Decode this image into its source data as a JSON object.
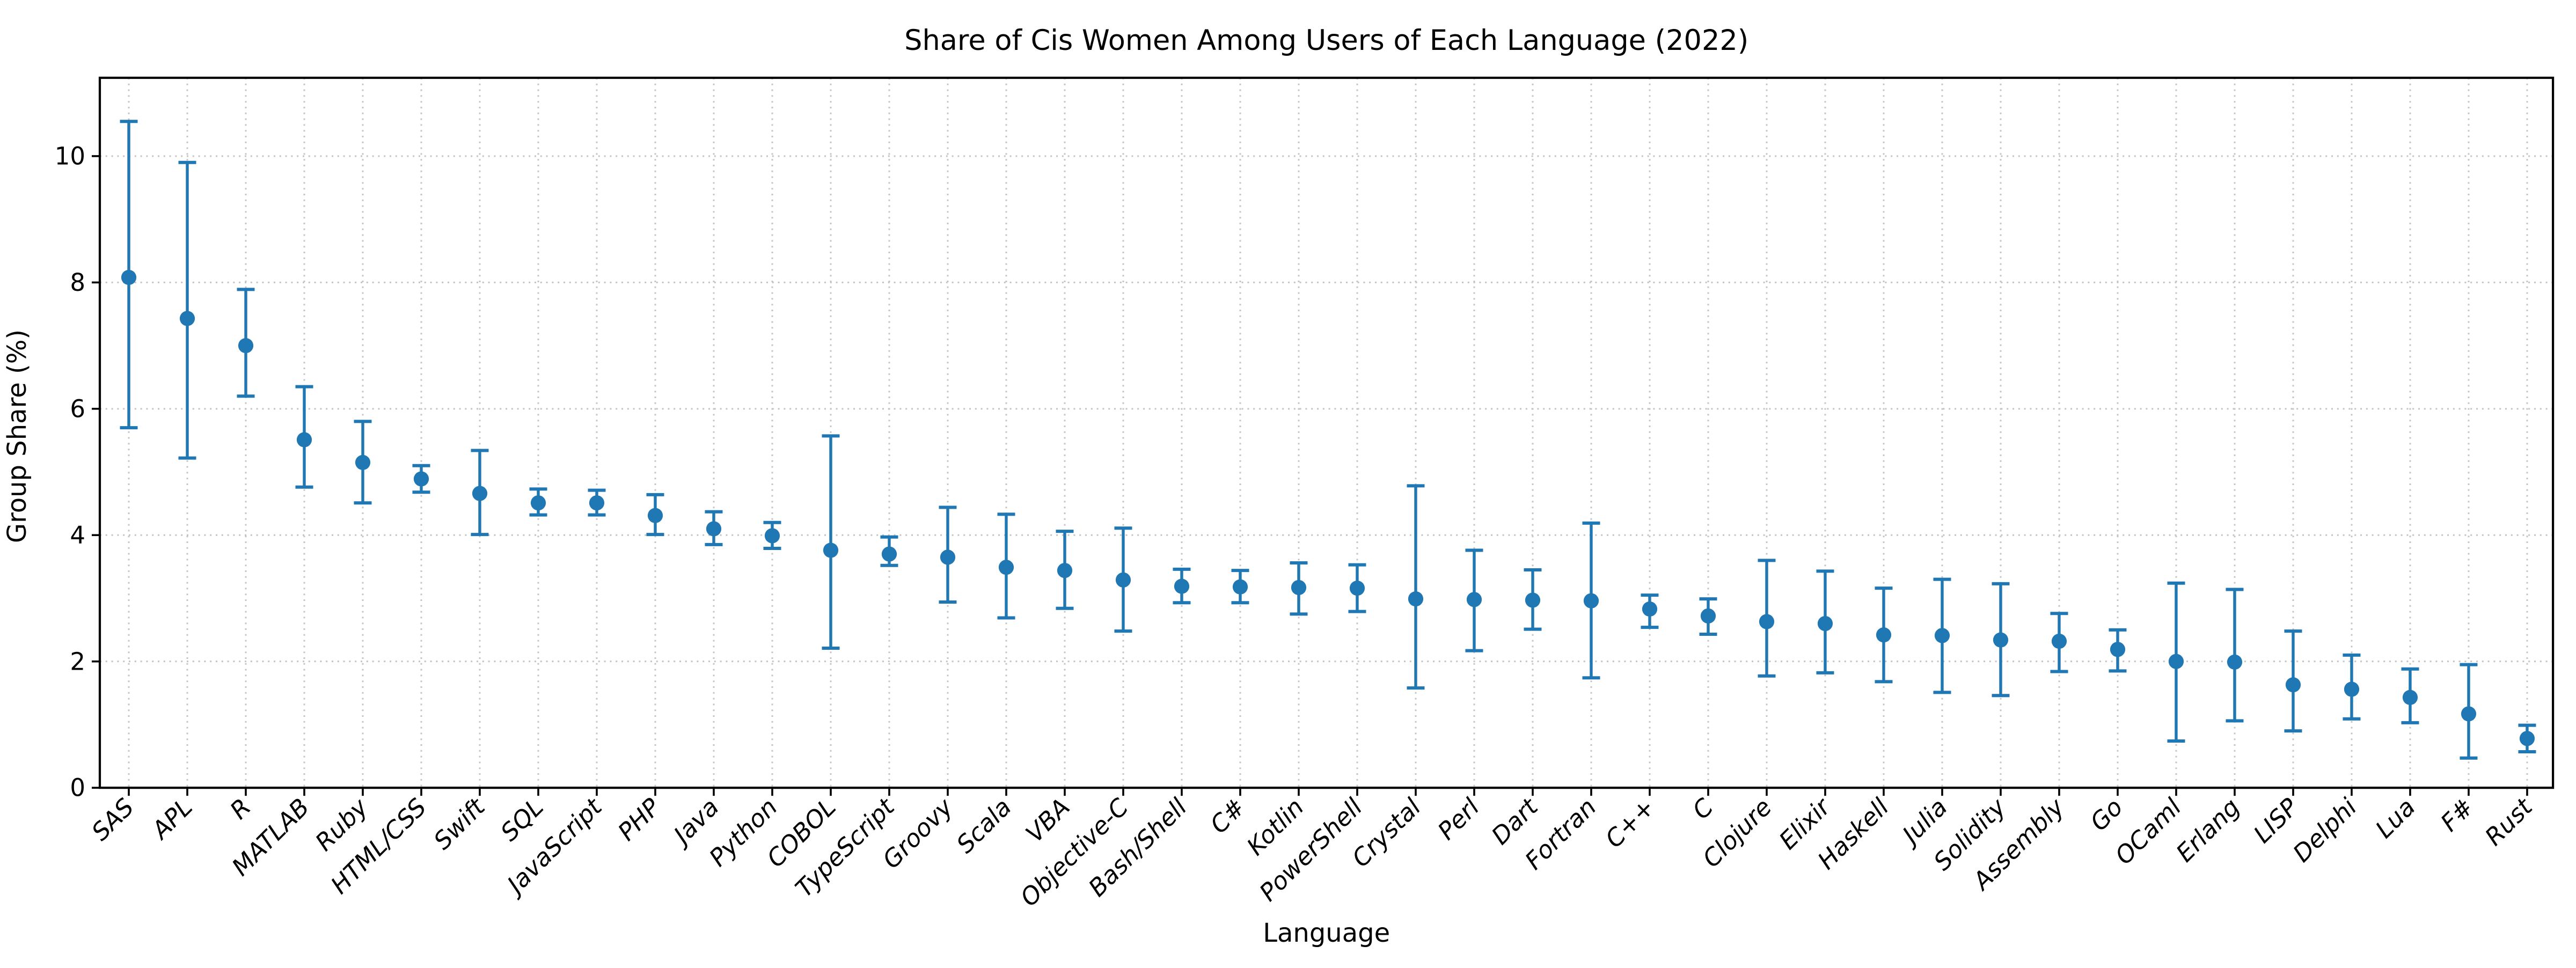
{
  "figure": {
    "background": "#ffffff",
    "plot_type": "errorbar-scatter",
    "marker": "circle",
    "marker_color": "#1f77b4",
    "errorbar_color": "#1f77b4",
    "grid_color": "#c4c4c4",
    "spine_color": "#000000",
    "grid_style": "dotted"
  },
  "chart_data": {
    "type": "scatter",
    "title": "Share of Cis Women Among Users of Each Language (2022)",
    "xlabel": "Language",
    "ylabel": "Group Share (%)",
    "ylim": [
      0,
      11.24
    ],
    "yticks": [
      0,
      2,
      4,
      6,
      8,
      10
    ],
    "ytick_labels": [
      "0",
      "2",
      "4",
      "6",
      "8",
      "10"
    ],
    "grid": "dotted gridlines on both axes",
    "legend": "none",
    "error_bars": "vertical, with caps; err_lo/err_hi are absolute interval endpoints in %",
    "categories": [
      "SAS",
      "APL",
      "R",
      "MATLAB",
      "Ruby",
      "HTML/CSS",
      "Swift",
      "SQL",
      "JavaScript",
      "PHP",
      "Java",
      "Python",
      "COBOL",
      "TypeScript",
      "Groovy",
      "Scala",
      "VBA",
      "Objective-C",
      "Bash/Shell",
      "C#",
      "Kotlin",
      "PowerShell",
      "Crystal",
      "Perl",
      "Dart",
      "Fortran",
      "C++",
      "C",
      "Clojure",
      "Elixir",
      "Haskell",
      "Julia",
      "Solidity",
      "Assembly",
      "Go",
      "OCaml",
      "Erlang",
      "LISP",
      "Delphi",
      "Lua",
      "F#",
      "Rust"
    ],
    "values": [
      8.08,
      7.43,
      7.0,
      5.51,
      5.15,
      4.89,
      4.66,
      4.51,
      4.51,
      4.31,
      4.1,
      3.99,
      3.76,
      3.7,
      3.65,
      3.49,
      3.44,
      3.29,
      3.19,
      3.18,
      3.17,
      3.16,
      2.99,
      2.98,
      2.97,
      2.96,
      2.83,
      2.72,
      2.63,
      2.6,
      2.42,
      2.41,
      2.34,
      2.32,
      2.19,
      2.0,
      1.99,
      1.63,
      1.56,
      1.43,
      1.17,
      0.78
    ],
    "err_lo": [
      5.7,
      5.22,
      6.2,
      4.76,
      4.51,
      4.68,
      4.01,
      4.32,
      4.32,
      4.01,
      3.85,
      3.79,
      2.21,
      3.52,
      2.94,
      2.69,
      2.84,
      2.48,
      2.93,
      2.93,
      2.75,
      2.79,
      1.58,
      2.17,
      2.51,
      1.74,
      2.54,
      2.43,
      1.77,
      1.82,
      1.68,
      1.51,
      1.46,
      1.84,
      1.85,
      0.74,
      1.06,
      0.9,
      1.09,
      1.03,
      0.47,
      0.57
    ],
    "err_hi": [
      10.55,
      9.9,
      7.89,
      6.35,
      5.8,
      5.1,
      5.34,
      4.73,
      4.71,
      4.64,
      4.37,
      4.2,
      5.57,
      3.97,
      4.44,
      4.33,
      4.06,
      4.11,
      3.46,
      3.44,
      3.56,
      3.53,
      4.78,
      3.76,
      3.45,
      4.19,
      3.05,
      2.99,
      3.6,
      3.43,
      3.16,
      3.3,
      3.23,
      2.76,
      2.5,
      3.24,
      3.14,
      2.48,
      2.1,
      1.88,
      1.95,
      0.99
    ]
  }
}
